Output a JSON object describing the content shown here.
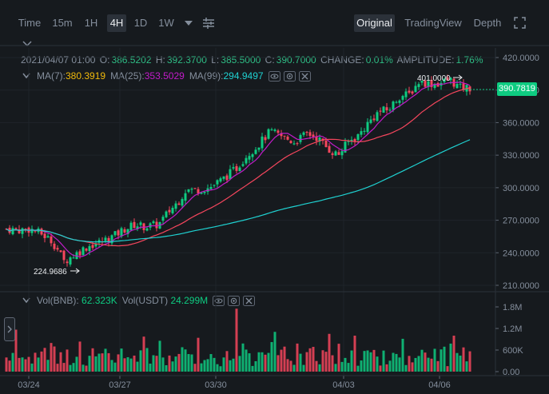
{
  "toolbar": {
    "intervals": [
      "Time",
      "15m",
      "1H",
      "4H",
      "1D",
      "1W"
    ],
    "active_interval": "4H",
    "views": [
      "Original",
      "TradingView",
      "Depth"
    ],
    "active_view": "Original"
  },
  "ohlc": {
    "date": "2021/04/07 01:00",
    "o_label": "O:",
    "o": "386.5202",
    "h_label": "H:",
    "h": "392.3700",
    "l_label": "L:",
    "l": "385.5000",
    "c_label": "C:",
    "c": "390.7000",
    "change_label": "CHANGE:",
    "change": "0.01%",
    "amplitude_label": "AMPLITUDE:",
    "amplitude": "1.76%"
  },
  "ma": {
    "ma7_label": "MA(7):",
    "ma7": "380.3919",
    "ma25_label": "MA(25):",
    "ma25": "353.5029",
    "ma99_label": "MA(99):",
    "ma99": "294.9497"
  },
  "volume": {
    "vol_label": "Vol(BNB):",
    "vol": "62.323K",
    "vol_usdt_label": "Vol(USDT)",
    "vol_usdt": "24.299M"
  },
  "price_axis": [
    "420.0000",
    "390.0000",
    "360.0000",
    "330.0000",
    "300.0000",
    "270.0000",
    "240.0000",
    "210.0000"
  ],
  "volume_axis": [
    "1.8M",
    "1.2M",
    "600K",
    "0.00"
  ],
  "date_axis": [
    "03/24",
    "03/27",
    "03/30",
    "04/03",
    "04/06"
  ],
  "last_price": "390.7819",
  "high_marker": "401.0000",
  "low_marker": "224.9686",
  "colors": {
    "up": "#0ecb81",
    "down": "#f6465d",
    "ma7": "#f0b90b",
    "ma25": "#c21bc9",
    "ma99": "#1fd1d1"
  }
}
